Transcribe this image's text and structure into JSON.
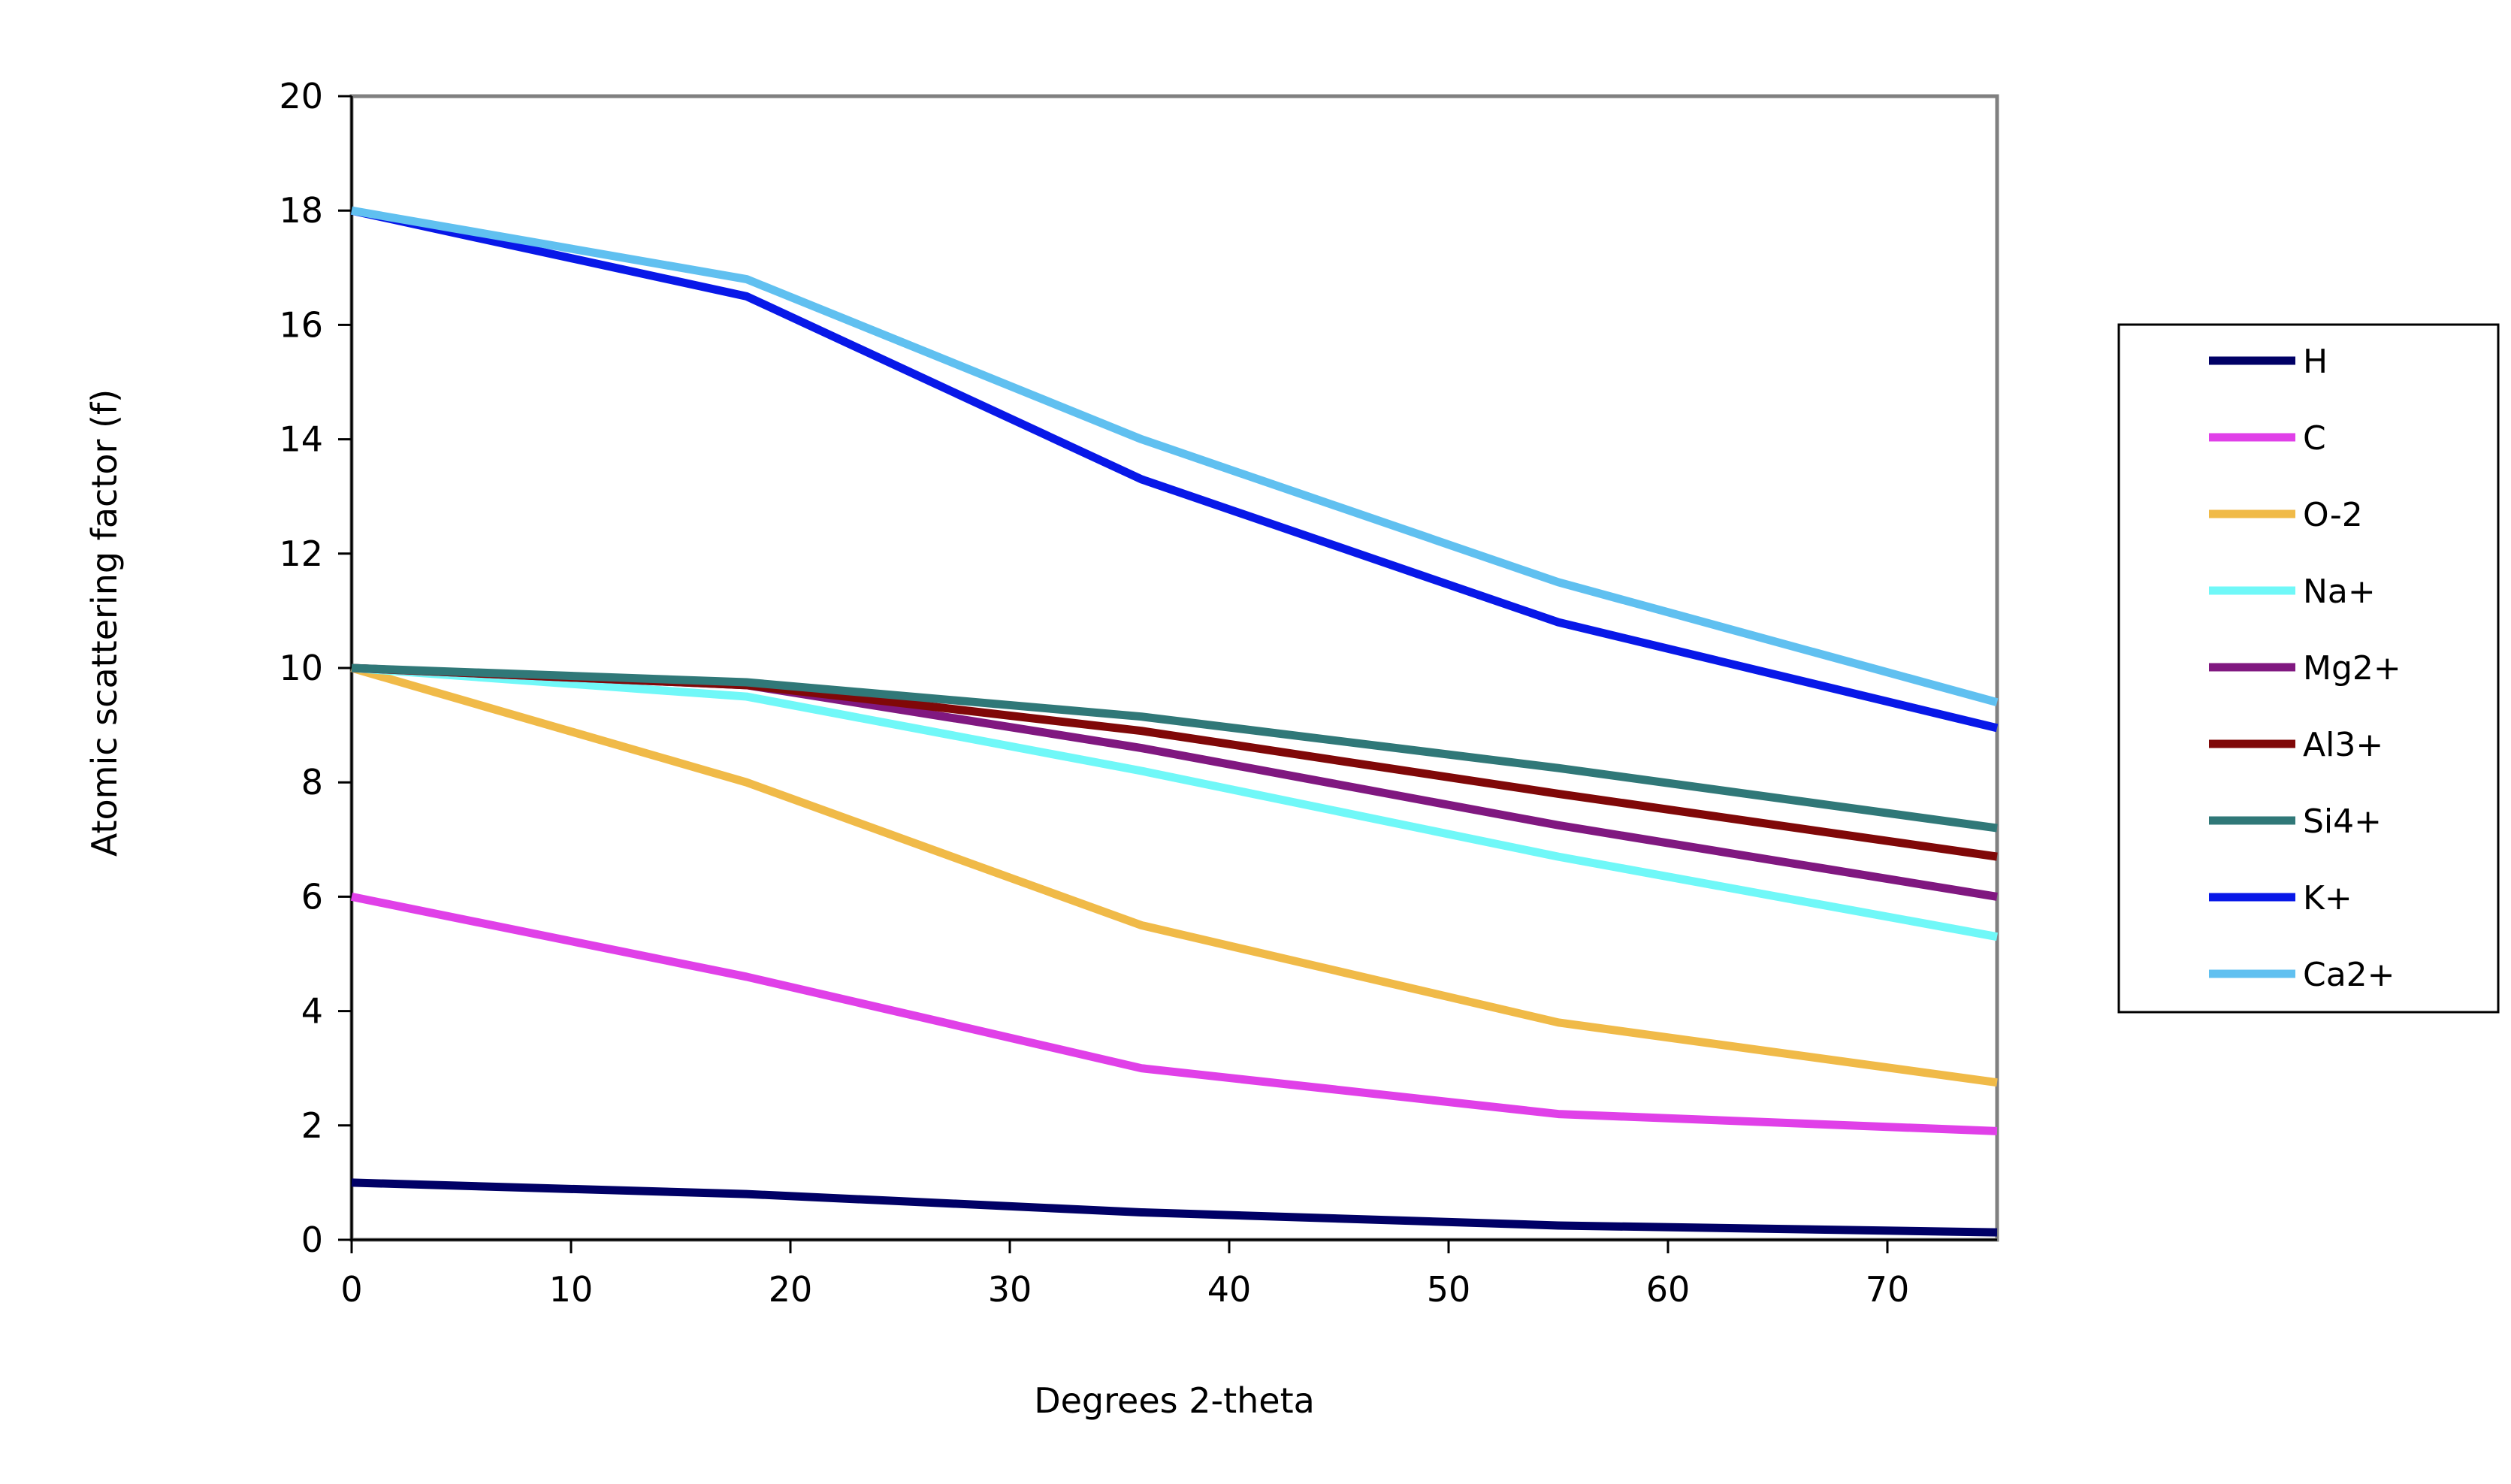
{
  "chart_data": {
    "type": "line",
    "title": "",
    "xlabel": "Degrees 2-theta",
    "ylabel": "Atomic scattering factor (f)",
    "xlim": [
      0,
      75
    ],
    "ylim": [
      0,
      20
    ],
    "xticks": [
      0,
      10,
      20,
      30,
      40,
      50,
      60,
      70
    ],
    "yticks": [
      0,
      2,
      4,
      6,
      8,
      10,
      12,
      14,
      16,
      18,
      20
    ],
    "x": [
      0,
      18,
      36,
      55,
      75
    ],
    "grid": false,
    "legend_position": "right",
    "series": [
      {
        "name": "H",
        "color": "#000066",
        "values": [
          1.0,
          0.8,
          0.48,
          0.25,
          0.13
        ]
      },
      {
        "name": "C",
        "color": "#E040E8",
        "values": [
          6.0,
          4.6,
          3.0,
          2.2,
          1.9
        ]
      },
      {
        "name": "O-2",
        "color": "#F0BA48",
        "values": [
          10.0,
          8.0,
          5.5,
          3.8,
          2.75
        ]
      },
      {
        "name": "Na+",
        "color": "#70F8F8",
        "values": [
          10.0,
          9.5,
          8.2,
          6.7,
          5.3
        ]
      },
      {
        "name": "Mg2+",
        "color": "#801880",
        "values": [
          10.0,
          9.7,
          8.6,
          7.25,
          6.0
        ]
      },
      {
        "name": "Al3+",
        "color": "#800808",
        "values": [
          10.0,
          9.7,
          8.9,
          7.8,
          6.7
        ]
      },
      {
        "name": "Si4+",
        "color": "#307878",
        "values": [
          10.0,
          9.75,
          9.15,
          8.25,
          7.2
        ]
      },
      {
        "name": "K+",
        "color": "#0818E8",
        "values": [
          18.0,
          16.5,
          13.3,
          10.8,
          8.95
        ]
      },
      {
        "name": "Ca2+",
        "color": "#60C0F0",
        "values": [
          18.0,
          16.8,
          14.0,
          11.5,
          9.4
        ]
      }
    ]
  }
}
